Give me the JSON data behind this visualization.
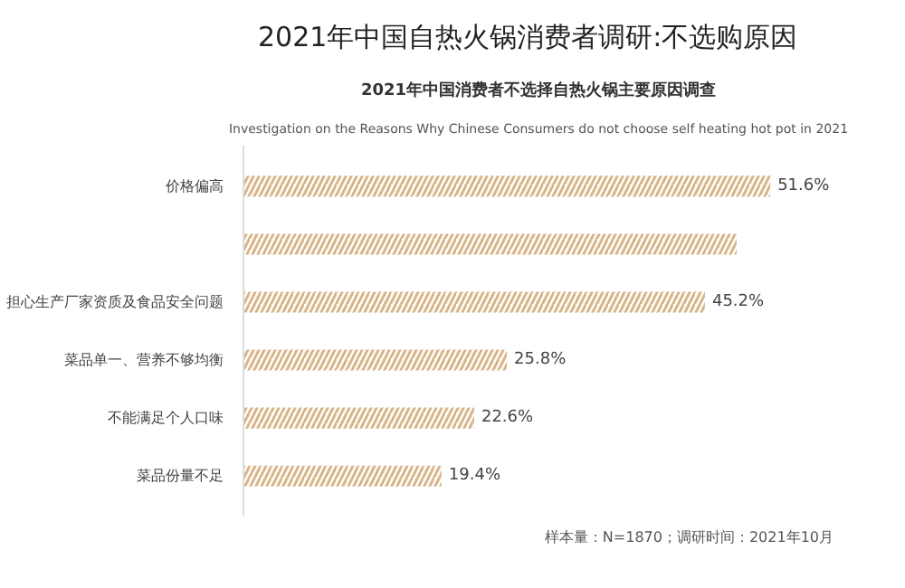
{
  "chart_data": {
    "type": "bar",
    "orientation": "horizontal",
    "title": "2021年中国自热火锅消费者调研:不选购原因",
    "subtitle": "2021年中国消费者不选择自热火锅主要原因调查",
    "annotations": [
      "Investigation on the Reasons Why Chinese Consumers do not choose self heating hot pot in 2021",
      "样本量：N=1870；调研时间：2021年10月"
    ],
    "categories": [
      "价格偏高",
      null,
      "担心生产厂家资质及食品安全问题",
      "菜品单一、营养不够均衡",
      "不能满足个人口味",
      "菜品份量不足"
    ],
    "values": [
      51.6,
      48.3,
      45.2,
      25.8,
      22.6,
      19.4
    ],
    "value_labels": [
      "51.6%",
      null,
      "45.2%",
      "25.8%",
      "22.6%",
      "19.4%"
    ],
    "color": "#d9b48a"
  }
}
